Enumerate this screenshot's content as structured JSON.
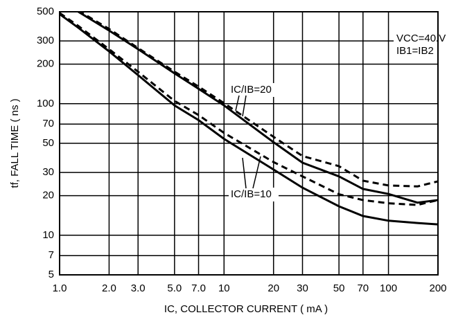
{
  "chart_data": {
    "type": "line",
    "x_label": "IC, COLLECTOR CURRENT ( mA )",
    "y_label": "tf, FALL TIME ( ns )",
    "annotations": [
      "IC/IB=20",
      "IC/IB=10",
      "VCC=40 V",
      "IB1=IB2"
    ],
    "log_x": true,
    "log_y": true,
    "grid": true,
    "x": [
      1,
      1.3,
      2,
      3,
      5,
      7,
      10,
      20,
      30,
      50,
      70,
      100,
      150,
      200
    ],
    "series": [
      {
        "color": "#000000",
        "dashed": false,
        "values": [
          null,
          500,
          360,
          260,
          170,
          130,
          97,
          51,
          35.6,
          28,
          22.5,
          20.6,
          17.7,
          18.5
        ]
      },
      {
        "color": "#000000",
        "dashed": true,
        "values": [
          null,
          510,
          370,
          265,
          175,
          135,
          101,
          56,
          40,
          33.5,
          26,
          23.9,
          23.5,
          25.7
        ]
      },
      {
        "color": "#000000",
        "dashed": false,
        "values": [
          480,
          378,
          250,
          165,
          97,
          75,
          54,
          31.6,
          23,
          16.6,
          14,
          12.9,
          12.4,
          12.1
        ]
      },
      {
        "color": "#000000",
        "dashed": true,
        "values": [
          490,
          390,
          260,
          175,
          105,
          82,
          60,
          36,
          28,
          20.5,
          18.5,
          17.5,
          17,
          18.5
        ]
      }
    ],
    "xlim": [
      1,
      200
    ],
    "xticks": [
      {
        "value": 1,
        "label": "1.0"
      },
      {
        "value": 2,
        "label": "2.0"
      },
      {
        "value": 3,
        "label": "3.0"
      },
      {
        "value": 5,
        "label": "5.0"
      },
      {
        "value": 7,
        "label": "7.0"
      },
      10,
      20,
      30,
      50,
      70,
      100,
      200
    ],
    "ylim": [
      5,
      500
    ],
    "yticks": [
      5,
      7,
      10,
      20,
      30,
      50,
      70,
      100,
      200,
      300,
      500
    ]
  }
}
